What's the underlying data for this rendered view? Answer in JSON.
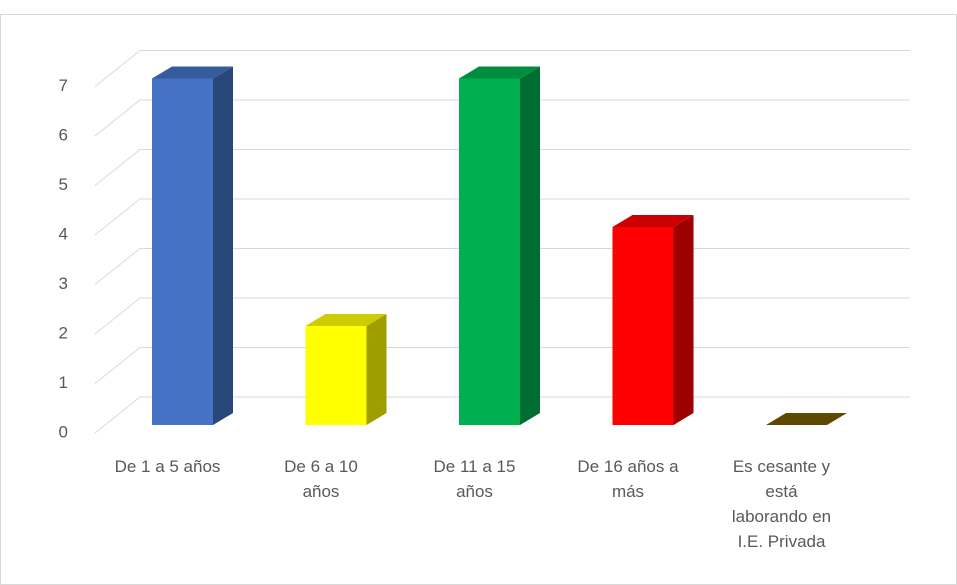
{
  "chart_data": {
    "type": "bar3d",
    "categories": [
      "De 1 a 5 años",
      "De 6 a 10 años",
      "De 11 a 15 años",
      "De 16 años a más",
      "Es cesante y está laborando en I.E. Privada"
    ],
    "values": [
      7,
      2,
      7,
      4,
      0
    ],
    "colors": [
      "#4472c4",
      "#ffff00",
      "#00b050",
      "#ff0000",
      "#7f6000"
    ],
    "ylim": [
      0,
      7
    ],
    "yticks": [
      0,
      1,
      2,
      3,
      4,
      5,
      6,
      7
    ],
    "grid": true
  }
}
